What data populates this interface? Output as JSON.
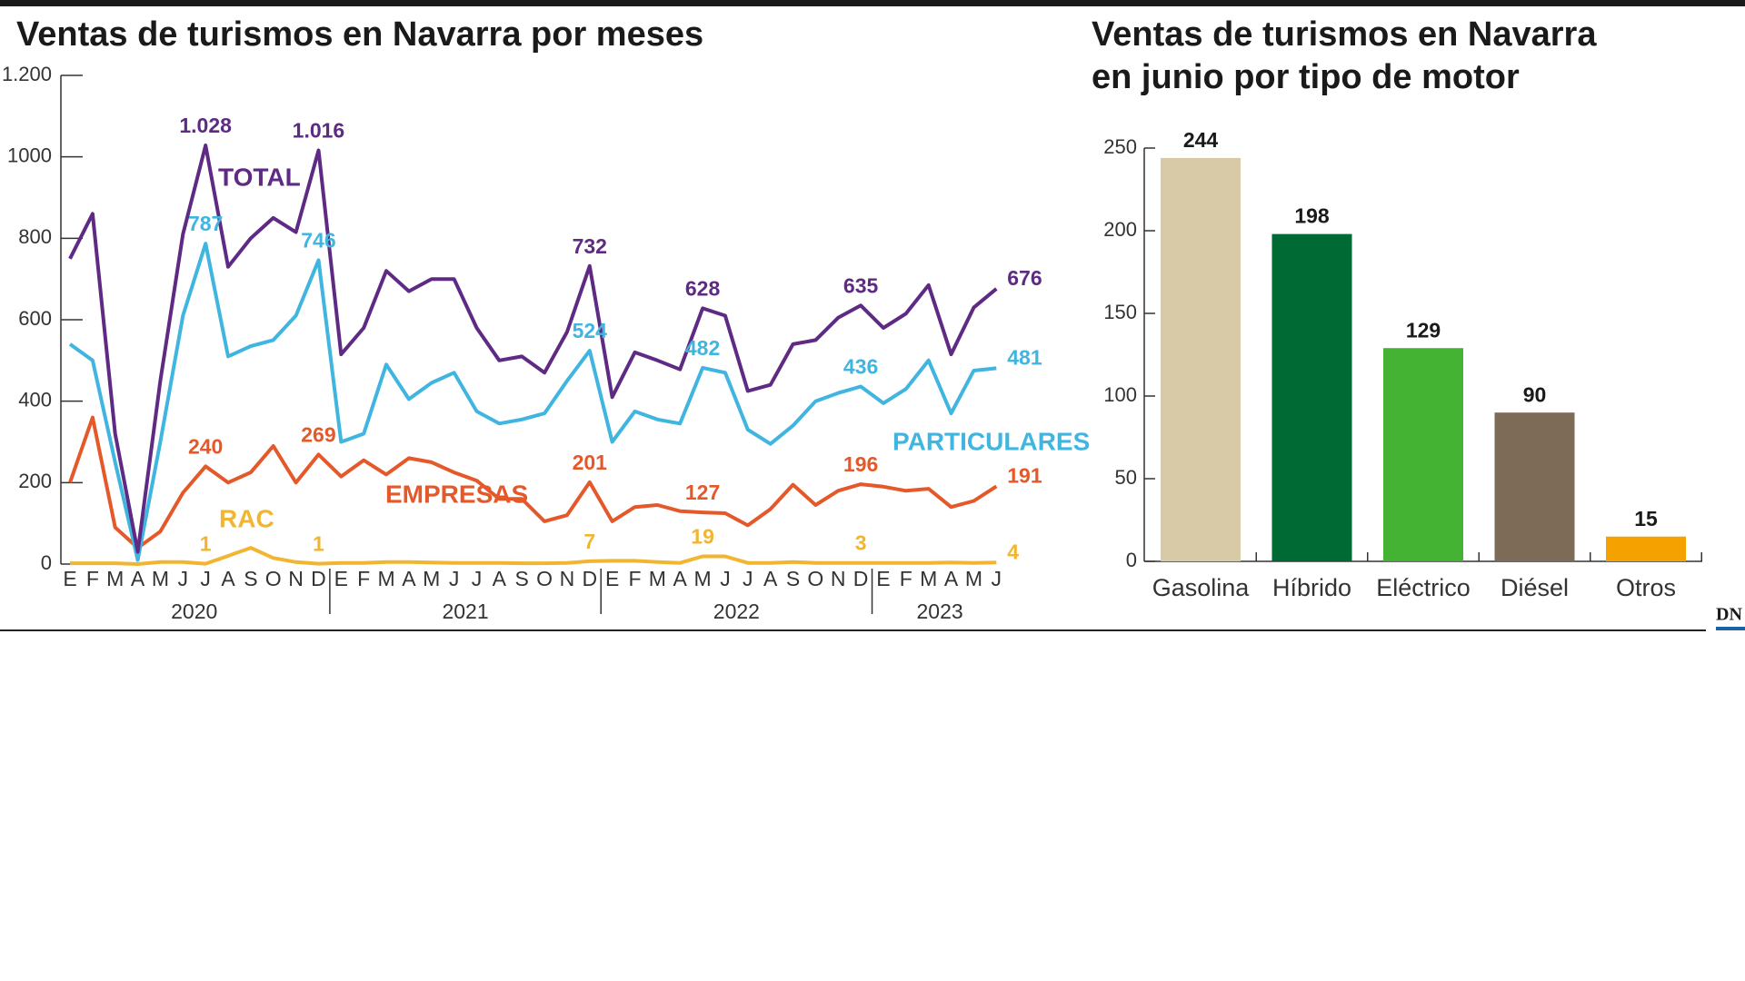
{
  "chart_data": [
    {
      "type": "line",
      "title": "Ventas de turismos en Navarra por meses",
      "categories": [
        "E",
        "F",
        "M",
        "A",
        "M",
        "J",
        "J",
        "A",
        "S",
        "O",
        "N",
        "D",
        "E",
        "F",
        "M",
        "A",
        "M",
        "J",
        "J",
        "A",
        "S",
        "O",
        "N",
        "D",
        "E",
        "F",
        "M",
        "A",
        "M",
        "J",
        "J",
        "A",
        "S",
        "O",
        "N",
        "D",
        "E",
        "F",
        "M",
        "A",
        "M",
        "J"
      ],
      "years": [
        "2020",
        "2021",
        "2022",
        "2023"
      ],
      "ylim": [
        0,
        1200
      ],
      "yticks": [
        0,
        200,
        400,
        600,
        800,
        1000,
        {
          "value": 1200,
          "label": "1.200"
        }
      ],
      "series": [
        {
          "name": "TOTAL",
          "color": "#5e2a84",
          "values": [
            750,
            860,
            320,
            30,
            450,
            810,
            1028,
            730,
            800,
            850,
            815,
            1016,
            515,
            580,
            720,
            670,
            700,
            700,
            580,
            500,
            510,
            470,
            570,
            732,
            410,
            520,
            500,
            478,
            628,
            610,
            425,
            440,
            540,
            550,
            605,
            635,
            580,
            615,
            685,
            515,
            630,
            676
          ],
          "value_labels": [
            null,
            null,
            null,
            null,
            null,
            null,
            "1.028",
            null,
            null,
            null,
            null,
            "1.016",
            null,
            null,
            null,
            null,
            null,
            null,
            null,
            null,
            null,
            null,
            null,
            "732",
            null,
            null,
            null,
            null,
            "628",
            null,
            null,
            null,
            null,
            null,
            null,
            "635",
            null,
            null,
            null,
            null,
            null,
            "676"
          ]
        },
        {
          "name": "PARTICULARES",
          "color": "#3fb5e0",
          "values": [
            540,
            500,
            250,
            10,
            300,
            610,
            787,
            510,
            535,
            550,
            610,
            746,
            300,
            320,
            490,
            405,
            445,
            470,
            375,
            345,
            355,
            370,
            450,
            524,
            300,
            375,
            355,
            345,
            482,
            470,
            330,
            295,
            340,
            400,
            420,
            436,
            395,
            430,
            500,
            370,
            475,
            481
          ],
          "value_labels": [
            null,
            null,
            null,
            null,
            null,
            null,
            "787",
            null,
            null,
            null,
            null,
            "746",
            null,
            null,
            null,
            null,
            null,
            null,
            null,
            null,
            null,
            null,
            null,
            "524",
            null,
            null,
            null,
            null,
            "482",
            null,
            null,
            null,
            null,
            null,
            null,
            "436",
            null,
            null,
            null,
            null,
            null,
            "481"
          ]
        },
        {
          "name": "EMPRESAS",
          "color": "#e4582a",
          "values": [
            200,
            360,
            90,
            40,
            80,
            175,
            240,
            200,
            225,
            290,
            200,
            269,
            215,
            255,
            220,
            260,
            250,
            225,
            205,
            160,
            160,
            105,
            120,
            201,
            105,
            140,
            145,
            130,
            127,
            125,
            95,
            135,
            195,
            145,
            180,
            196,
            190,
            180,
            185,
            140,
            155,
            191
          ],
          "value_labels": [
            null,
            null,
            null,
            null,
            null,
            null,
            "240",
            null,
            null,
            null,
            null,
            "269",
            null,
            null,
            null,
            null,
            null,
            null,
            null,
            null,
            null,
            null,
            null,
            "201",
            null,
            null,
            null,
            null,
            "127",
            null,
            null,
            null,
            null,
            null,
            null,
            "196",
            null,
            null,
            null,
            null,
            null,
            "191"
          ]
        },
        {
          "name": "RAC",
          "color": "#f2b531",
          "values": [
            2,
            2,
            2,
            0,
            5,
            5,
            1,
            20,
            40,
            15,
            5,
            1,
            3,
            3,
            5,
            5,
            4,
            3,
            3,
            3,
            2,
            2,
            3,
            7,
            8,
            8,
            5,
            3,
            19,
            19,
            3,
            3,
            5,
            3,
            3,
            3,
            3,
            3,
            3,
            4,
            3,
            4
          ],
          "value_labels": [
            null,
            null,
            null,
            null,
            null,
            null,
            "1",
            null,
            null,
            null,
            null,
            "1",
            null,
            null,
            null,
            null,
            null,
            null,
            null,
            null,
            null,
            null,
            null,
            "7",
            null,
            null,
            null,
            null,
            "19",
            null,
            null,
            null,
            null,
            null,
            null,
            "3",
            null,
            null,
            null,
            null,
            null,
            "4"
          ]
        }
      ]
    },
    {
      "type": "bar",
      "title": "Ventas de turismos en Navarra en junio por tipo de motor",
      "categories": [
        "Gasolina",
        "Híbrido",
        "Eléctrico",
        "Diésel",
        "Otros"
      ],
      "values": [
        244,
        198,
        129,
        90,
        15
      ],
      "colors": [
        "#d8c9a7",
        "#006a35",
        "#44b232",
        "#7d6b58",
        "#f5a200"
      ],
      "ylim": [
        0,
        250
      ],
      "yticks": [
        0,
        50,
        100,
        150,
        200,
        250
      ]
    }
  ],
  "logo": "DN"
}
